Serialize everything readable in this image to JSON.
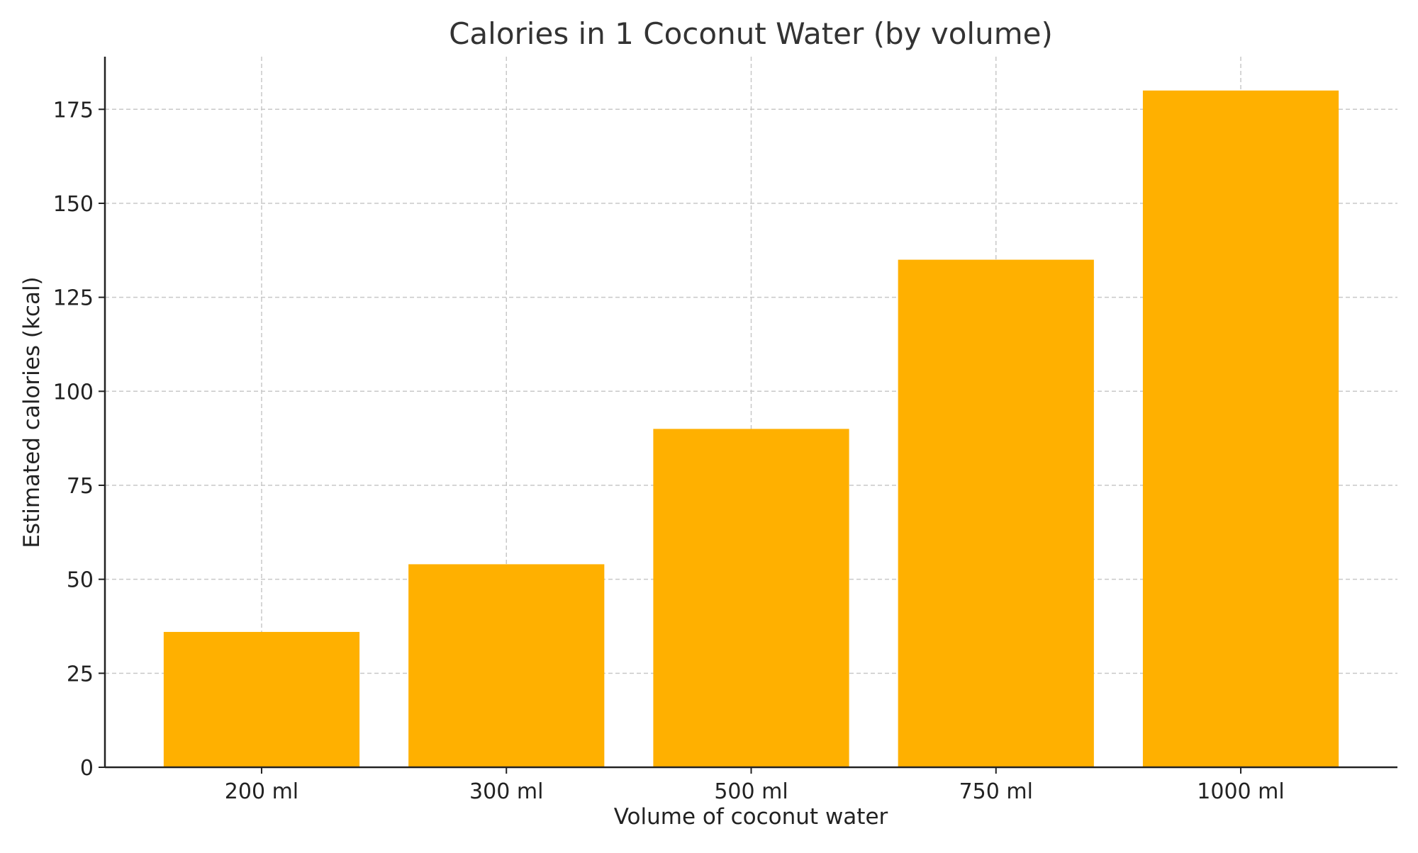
{
  "chart_data": {
    "type": "bar",
    "title": "Calories in 1 Coconut Water (by volume)",
    "xlabel": "Volume of coconut water",
    "ylabel": "Estimated calories (kcal)",
    "categories": [
      "200 ml",
      "300 ml",
      "500 ml",
      "750 ml",
      "1000 ml"
    ],
    "values": [
      36,
      54,
      90,
      135,
      180
    ],
    "ylim": [
      0,
      189
    ],
    "yticks": [
      0,
      25,
      50,
      75,
      100,
      125,
      150,
      175
    ],
    "grid": true,
    "bar_color": "#FFB000"
  }
}
